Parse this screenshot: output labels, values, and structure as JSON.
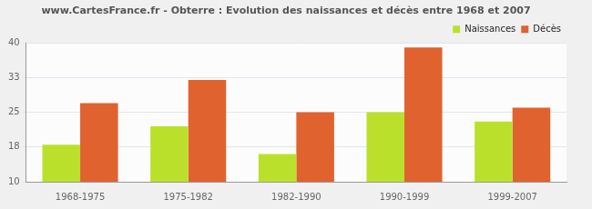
{
  "chart_data": {
    "type": "bar",
    "title": "www.CartesFrance.fr - Obterre : Evolution des naissances et décès entre 1968 et 2007",
    "categories": [
      "1968-1975",
      "1975-1982",
      "1982-1990",
      "1990-1999",
      "1999-2007"
    ],
    "series": [
      {
        "name": "Naissances",
        "color": "#bbe02c",
        "values": [
          18,
          22,
          16,
          25,
          23
        ]
      },
      {
        "name": "Décès",
        "color": "#e0622e",
        "values": [
          27,
          32,
          25,
          39,
          26
        ]
      }
    ],
    "ylim": [
      10,
      40
    ],
    "yticks": [
      10,
      {
        "value": 17.5,
        "label": "18"
      },
      25,
      {
        "value": 32.5,
        "label": "33"
      },
      40
    ],
    "grid": true,
    "legend": "top-right"
  }
}
